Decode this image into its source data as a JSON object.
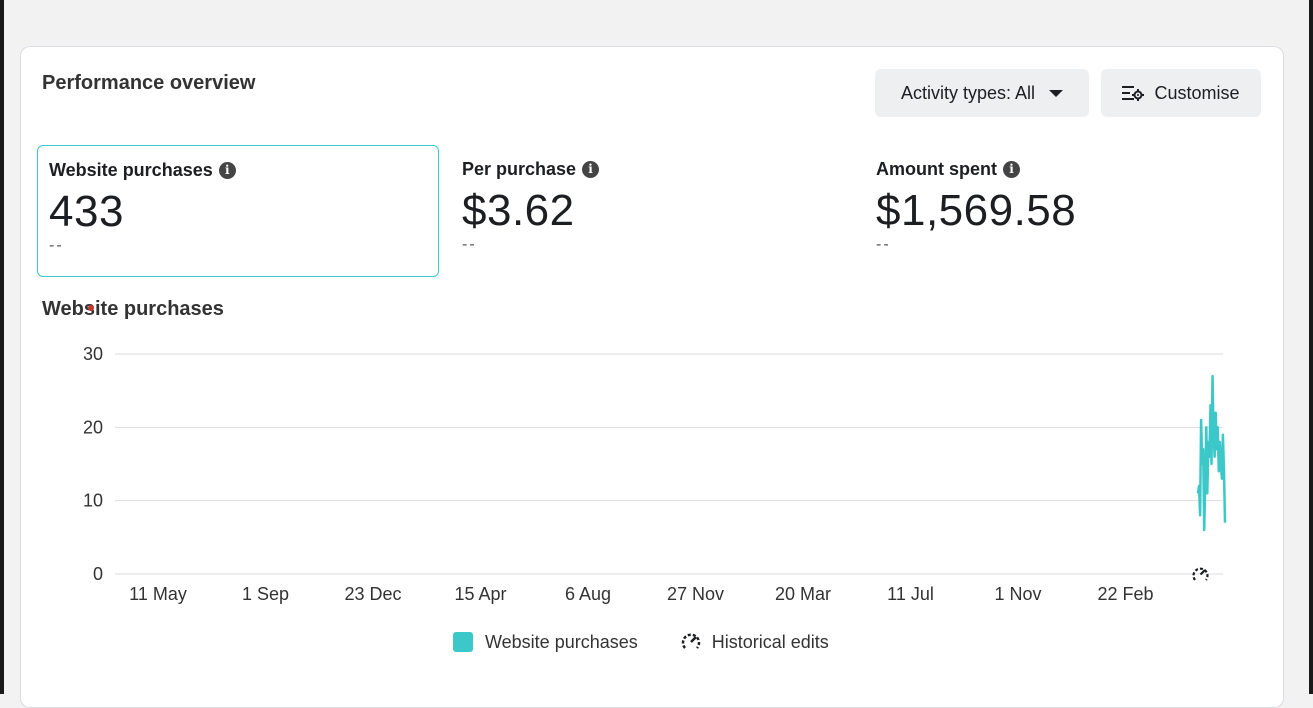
{
  "header": {
    "title": "Performance overview",
    "activity_button": "Activity types: All",
    "customise_button": "Customise"
  },
  "metrics": [
    {
      "label": "Website purchases",
      "value": "433",
      "compare": "--"
    },
    {
      "label": "Per purchase",
      "value": "$3.62",
      "compare": "--"
    },
    {
      "label": "Amount spent",
      "value": "$1,569.58",
      "compare": "--"
    }
  ],
  "chart": {
    "title": "Website purchases"
  },
  "legend": {
    "series_label": "Website purchases",
    "edits_label": "Historical edits"
  },
  "colors": {
    "series": "#3cc8c8",
    "grid": "#dddddd"
  },
  "chart_data": {
    "type": "line",
    "ylim": [
      0,
      30
    ],
    "y_ticks": [
      0,
      10,
      20,
      30
    ],
    "x_ticks": [
      "11 May",
      "1 Sep",
      "23 Dec",
      "15 Apr",
      "6 Aug",
      "27 Nov",
      "20 Mar",
      "11 Jul",
      "1 Nov",
      "22 Feb"
    ],
    "series": [
      {
        "name": "Website purchases",
        "values": [
          11,
          12,
          8,
          21,
          15,
          17,
          6,
          13,
          20,
          11,
          18,
          16,
          23,
          15,
          27,
          19,
          16,
          22,
          17,
          20,
          14,
          18,
          15,
          13,
          19,
          14,
          7
        ]
      }
    ],
    "annotations": [
      "historical-edit-marker"
    ]
  }
}
